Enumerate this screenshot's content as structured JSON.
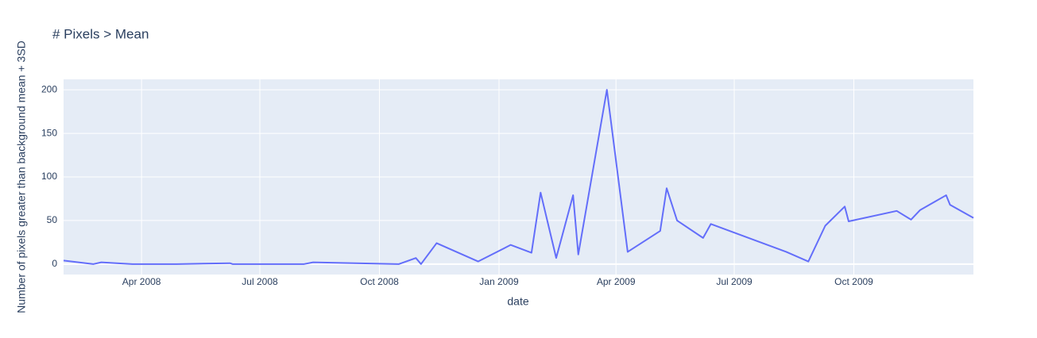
{
  "chart_data": {
    "type": "line",
    "title": "# Pixels > Mean",
    "x_label": "date",
    "y_label": "Number of pixels greater than background mean + 3SD",
    "x": [
      "2008-02-01",
      "2008-02-24",
      "2008-03-01",
      "2008-03-25",
      "2008-04-28",
      "2008-06-08",
      "2008-06-10",
      "2008-08-04",
      "2008-08-11",
      "2008-10-16",
      "2008-10-29",
      "2008-11-02",
      "2008-11-14",
      "2008-12-16",
      "2009-01-10",
      "2009-01-26",
      "2009-02-02",
      "2009-02-14",
      "2009-02-27",
      "2009-03-03",
      "2009-03-25",
      "2009-04-10",
      "2009-05-05",
      "2009-05-10",
      "2009-05-18",
      "2009-06-07",
      "2009-06-13",
      "2009-08-10",
      "2009-08-27",
      "2009-09-09",
      "2009-09-24",
      "2009-09-27",
      "2009-11-03",
      "2009-11-14",
      "2009-11-21",
      "2009-12-11",
      "2009-12-14",
      "2010-01-01"
    ],
    "series": [
      {
        "color": "#636efa",
        "values": [
          4,
          0,
          2,
          0,
          0,
          1,
          0,
          0,
          2,
          0,
          7,
          0,
          24,
          3,
          22,
          13,
          82,
          7,
          79,
          11,
          200,
          14,
          38,
          87,
          50,
          30,
          46,
          14,
          3,
          44,
          66,
          49,
          61,
          51,
          62,
          79,
          68,
          53
        ]
      }
    ],
    "xlim": [
      "2008-02-01",
      "2010-01-01"
    ],
    "xticks": [
      {
        "value": "2008-04-01",
        "label": "Apr 2008"
      },
      {
        "value": "2008-07-01",
        "label": "Jul 2008"
      },
      {
        "value": "2008-10-01",
        "label": "Oct 2008"
      },
      {
        "value": "2009-01-01",
        "label": "Jan 2009"
      },
      {
        "value": "2009-04-01",
        "label": "Apr 2009"
      },
      {
        "value": "2009-07-01",
        "label": "Jul 2009"
      },
      {
        "value": "2009-10-01",
        "label": "Oct 2009"
      }
    ],
    "ylim": [
      -12,
      212
    ],
    "yticks": [
      0,
      50,
      100,
      150,
      200
    ],
    "grid": true
  }
}
